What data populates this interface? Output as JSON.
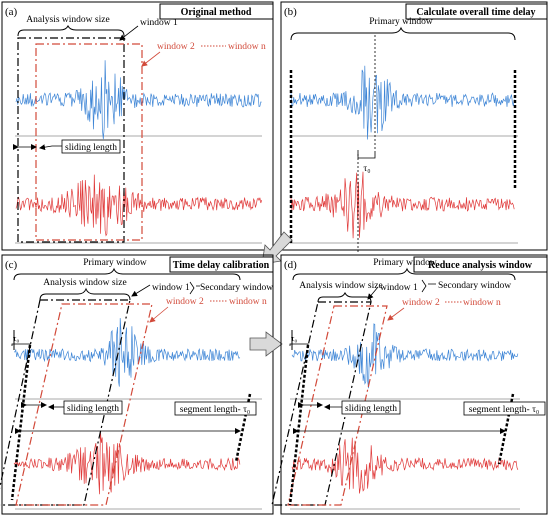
{
  "colors": {
    "blue_signal": "#3f86d6",
    "red_signal": "#e03a3a",
    "red_dash": "#d24a3a",
    "black": "#000000",
    "gray_axis": "#8c8c8c",
    "arrow_fill": "#d9d9d9"
  },
  "panels": {
    "a": {
      "letter": "(a)",
      "title": "Original method",
      "analysis_window_size": "Analysis window size",
      "window_1": "window 1",
      "window_2": "window 2",
      "window_n": "window n",
      "sliding_length": "sliding length"
    },
    "b": {
      "letter": "(b)",
      "title": "Calculate overall time delay",
      "primary_window": "Primary window",
      "tau": "τ₀"
    },
    "c": {
      "letter": "(c)",
      "title": "Time delay calibration",
      "primary_window": "Primary window",
      "analysis_window_size": "Analysis window size",
      "window_1": "window 1",
      "secondary_window": "Secondary window",
      "window_2": "window 2",
      "window_n": "window n",
      "tau": "τ₀",
      "sliding_length": "sliding length",
      "segment_length": "segment length- τ₀"
    },
    "d": {
      "letter": "(d)",
      "title": "Reduce analysis window",
      "primary_window": "Primary window",
      "analysis_window_size": "Analysis window size",
      "window_1": "window 1",
      "secondary_window": "Secondary window",
      "window_2": "window 2",
      "window_n": "window n",
      "tau": "τ₀",
      "sliding_length": "sliding length",
      "segment_length": "segment length- τ₀"
    }
  }
}
